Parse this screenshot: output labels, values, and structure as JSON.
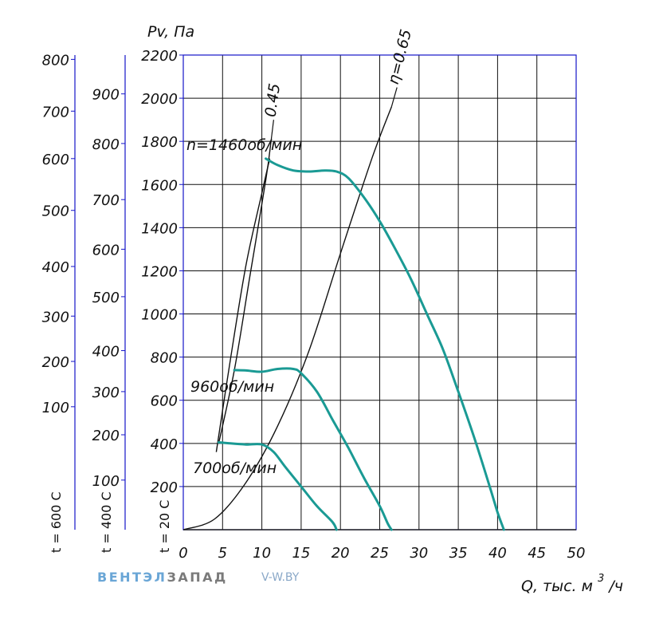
{
  "chart_data": {
    "type": "line",
    "ylabel": "Pv, Па",
    "xlabel_text": "Q, тыс. м",
    "xlabel_sup": "3",
    "xlabel_tail": "/ч",
    "x_ticks": [
      "0",
      "5",
      "10",
      "15",
      "20",
      "25",
      "30",
      "35",
      "40",
      "45",
      "50"
    ],
    "xlim": [
      0,
      50
    ],
    "ylim": [
      0,
      2200
    ],
    "grid": true,
    "y_axes": [
      {
        "name": "t = 20 C",
        "ticks": [
          {
            "label": "200",
            "value": 200
          },
          {
            "label": "400",
            "value": 400
          },
          {
            "label": "600",
            "value": 600
          },
          {
            "label": "800",
            "value": 800
          },
          {
            "label": "1000",
            "value": 1000
          },
          {
            "label": "1200",
            "value": 1200
          },
          {
            "label": "1400",
            "value": 1400
          },
          {
            "label": "1600",
            "value": 1600
          },
          {
            "label": "1800",
            "value": 1800
          },
          {
            "label": "2000",
            "value": 2000
          },
          {
            "label": "2200",
            "value": 2200
          }
        ]
      },
      {
        "name": "t = 400 C",
        "ticks": [
          {
            "label": "100",
            "value": 230
          },
          {
            "label": "200",
            "value": 440
          },
          {
            "label": "300",
            "value": 640
          },
          {
            "label": "400",
            "value": 830
          },
          {
            "label": "500",
            "value": 1080
          },
          {
            "label": "600",
            "value": 1300
          },
          {
            "label": "700",
            "value": 1530
          },
          {
            "label": "800",
            "value": 1790
          },
          {
            "label": "900",
            "value": 2020
          }
        ]
      },
      {
        "name": "t = 600 C",
        "ticks": [
          {
            "label": "100",
            "value": 570
          },
          {
            "label": "200",
            "value": 780
          },
          {
            "label": "300",
            "value": 990
          },
          {
            "label": "400",
            "value": 1220
          },
          {
            "label": "500",
            "value": 1480
          },
          {
            "label": "600",
            "value": 1720
          },
          {
            "label": "700",
            "value": 1940
          },
          {
            "label": "800",
            "value": 2180
          }
        ]
      }
    ],
    "series": [
      {
        "name": "n=1460об/мин",
        "color": "#1a9a94",
        "x": [
          10.5,
          12,
          14,
          16,
          18,
          19.5,
          21,
          23,
          25,
          27,
          29,
          31,
          33,
          35,
          37,
          39,
          40,
          40.8
        ],
        "y": [
          1720,
          1690,
          1665,
          1660,
          1665,
          1660,
          1630,
          1540,
          1430,
          1300,
          1160,
          1000,
          840,
          640,
          430,
          200,
          80,
          0
        ]
      },
      {
        "name": "960об/мин",
        "color": "#1a9a94",
        "x": [
          6.5,
          8,
          10,
          12,
          14,
          15,
          17,
          19,
          21,
          23,
          25,
          26,
          26.5
        ],
        "y": [
          740,
          738,
          732,
          745,
          745,
          725,
          640,
          510,
          380,
          240,
          110,
          30,
          0
        ]
      },
      {
        "name": "700об/мин",
        "color": "#1a9a94",
        "x": [
          4.5,
          6,
          8,
          10,
          11.5,
          13,
          15,
          17,
          19,
          19.5
        ],
        "y": [
          405,
          400,
          395,
          395,
          360,
          290,
          200,
          110,
          35,
          0
        ]
      }
    ],
    "efficiency_lines": [
      {
        "label": "0.45",
        "x": [
          4.2,
          6,
          8,
          10,
          11
        ],
        "y": [
          360,
          790,
          1230,
          1560,
          1720
        ]
      },
      {
        "label": "0.45",
        "x": [
          4.5,
          6.5,
          8.5,
          10.5,
          11.2
        ],
        "y": [
          400,
          740,
          1180,
          1620,
          1810
        ]
      },
      {
        "label": "η=0.65",
        "x": [
          0,
          4,
          8,
          12,
          16,
          20,
          24,
          26.5
        ],
        "y": [
          0,
          50,
          220,
          480,
          830,
          1280,
          1720,
          1960
        ]
      }
    ],
    "annotations": {
      "eta45": "0.45",
      "eta65": "η=0.65",
      "n1460": "n=1460об/мин",
      "n960": "960об/мин",
      "n700": "700об/мин"
    },
    "colors": {
      "axis": "#1515c8",
      "grid": "#111111",
      "curve": "#1a9a94"
    }
  },
  "brand": {
    "part1": "ВЕНТЭЛ",
    "part2": "ЗАПАД",
    "site": "V-W.BY"
  }
}
